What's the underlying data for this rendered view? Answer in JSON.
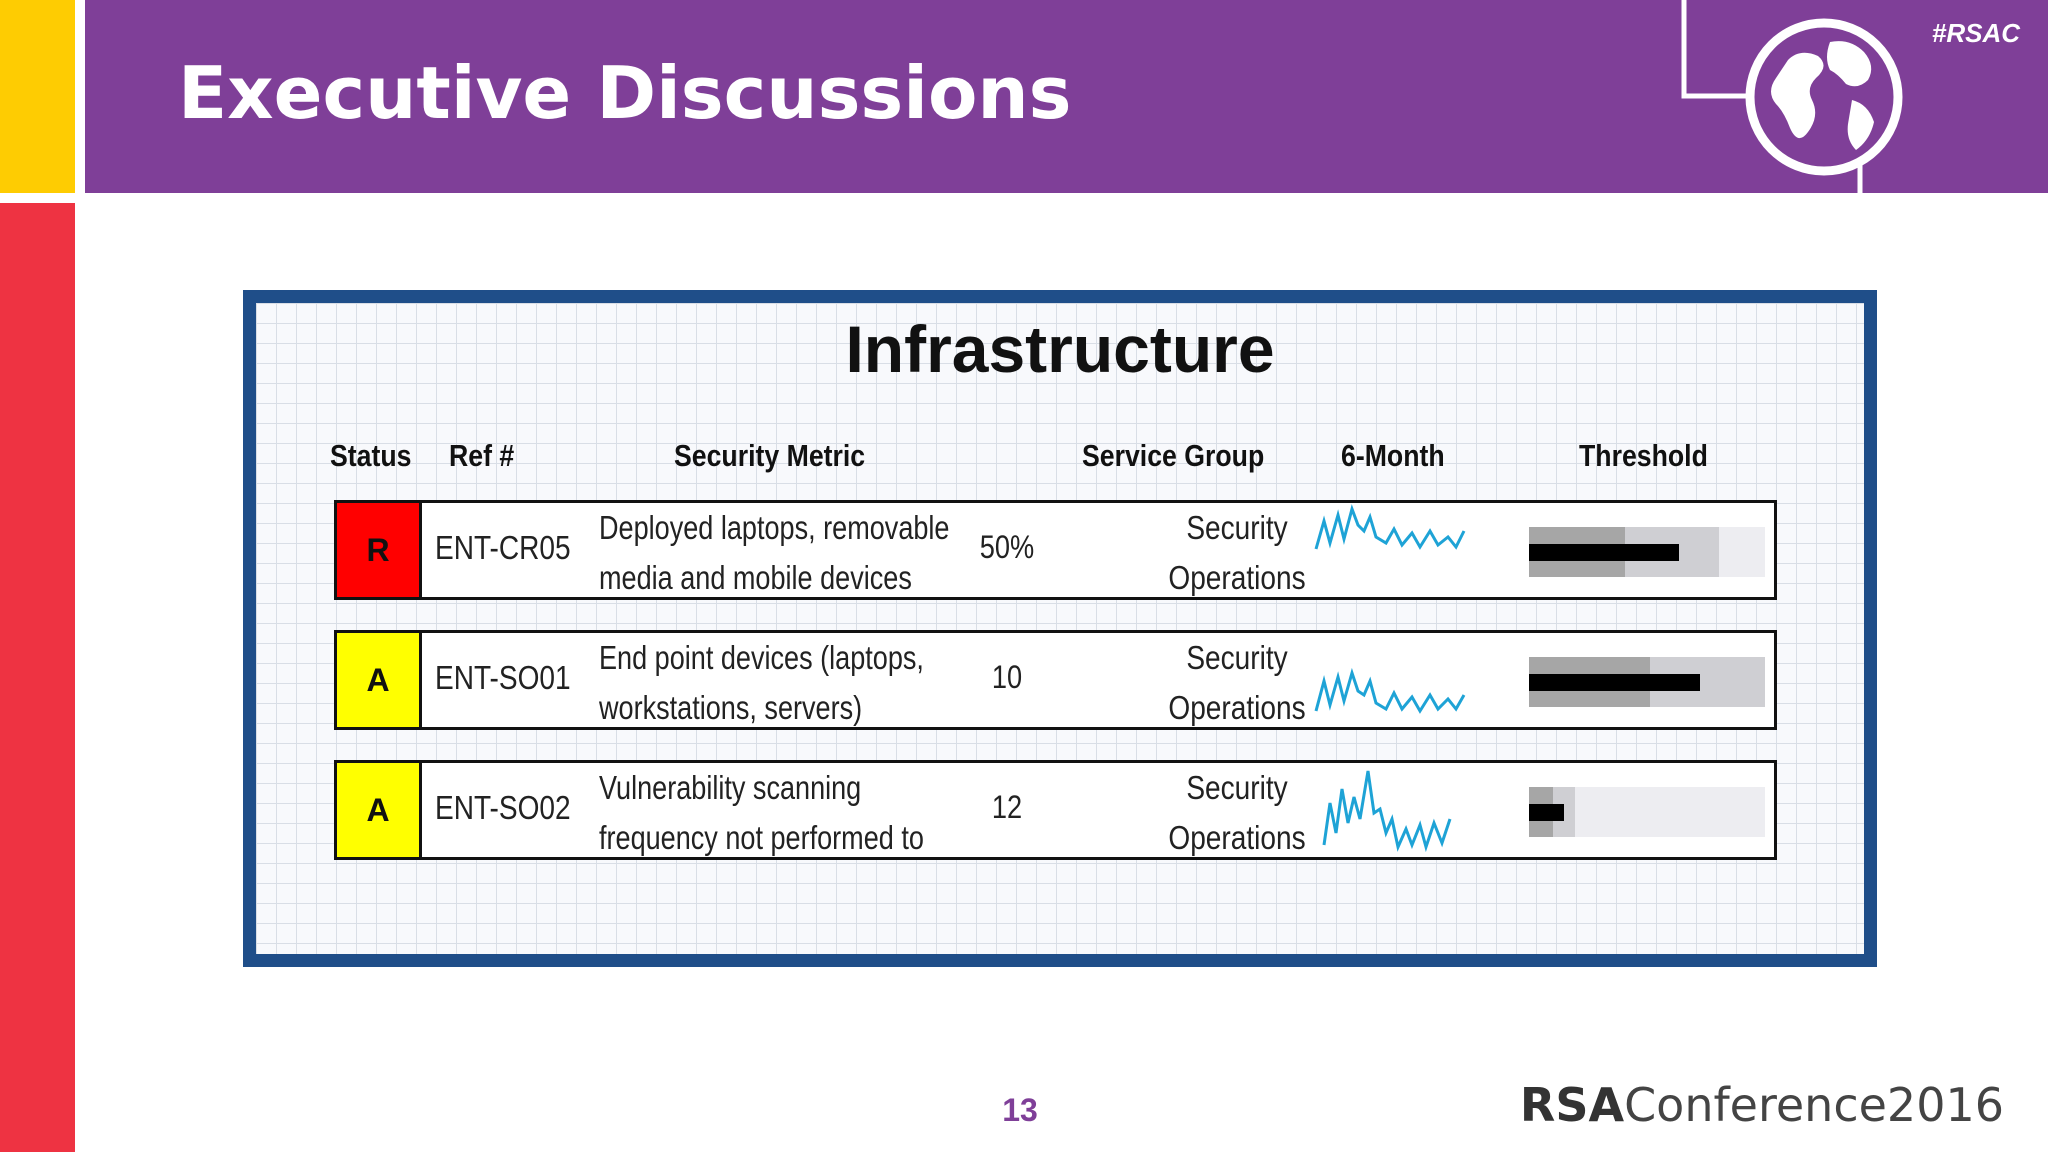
{
  "header": {
    "title": "Executive Discussions",
    "hashtag": "#RSAC",
    "bg_color": "#7F3F98",
    "icon": "globe-icon"
  },
  "panel": {
    "title": "Infrastructure",
    "columns": [
      "Status",
      "Ref #",
      "Security Metric",
      "Service Group",
      "6-Month",
      "Threshold"
    ],
    "rows": [
      {
        "status": "R",
        "status_color": "#FF0000",
        "ref": "ENT-CR05",
        "metric_line1": "Deployed laptops, removable",
        "metric_line2": "media and mobile devices",
        "value": "50%",
        "group_line1": "Security",
        "group_line2": "Operations"
      },
      {
        "status": "A",
        "status_color": "#FFFF00",
        "ref": "ENT-SO01",
        "metric_line1": "End point devices (laptops,",
        "metric_line2": "workstations, servers)",
        "value": "10",
        "group_line1": "Security",
        "group_line2": "Operations"
      },
      {
        "status": "A",
        "status_color": "#FFFF00",
        "ref": "ENT-SO02",
        "metric_line1": "Vulnerability scanning",
        "metric_line2": "frequency not performed to",
        "value": "12",
        "group_line1": "Security",
        "group_line2": "Operations"
      }
    ]
  },
  "footer": {
    "page_number": "13",
    "brand_bold": "RSA",
    "brand_rest": "Conference2016"
  }
}
